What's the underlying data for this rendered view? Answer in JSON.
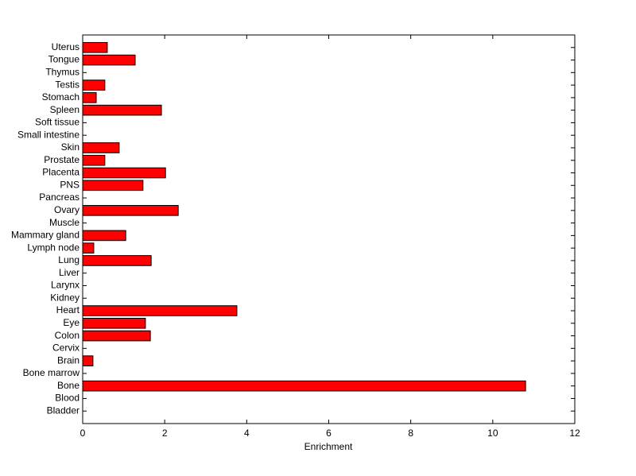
{
  "chart_data": {
    "type": "barh",
    "xlabel": "Enrichment",
    "categories": [
      "Bladder",
      "Blood",
      "Bone",
      "Bone marrow",
      "Brain",
      "Cervix",
      "Colon",
      "Eye",
      "Heart",
      "Kidney",
      "Larynx",
      "Liver",
      "Lung",
      "Lymph node",
      "Mammary gland",
      "Muscle",
      "Ovary",
      "Pancreas",
      "PNS",
      "Placenta",
      "Prostate",
      "Skin",
      "Small intestine",
      "Soft tissue",
      "Spleen",
      "Stomach",
      "Testis",
      "Thymus",
      "Tongue",
      "Uterus"
    ],
    "values": [
      0,
      0,
      10.8,
      0,
      0.25,
      0,
      1.65,
      1.53,
      3.76,
      0,
      0,
      0,
      1.67,
      0.27,
      1.05,
      0,
      2.33,
      0,
      1.47,
      2.02,
      0.54,
      0.89,
      0,
      0,
      1.92,
      0.33,
      0.54,
      0,
      1.28,
      0.6
    ],
    "color": "#ff0000",
    "xlim": [
      0,
      12
    ],
    "xticks": [
      0,
      2,
      4,
      6,
      8,
      10,
      12
    ]
  }
}
